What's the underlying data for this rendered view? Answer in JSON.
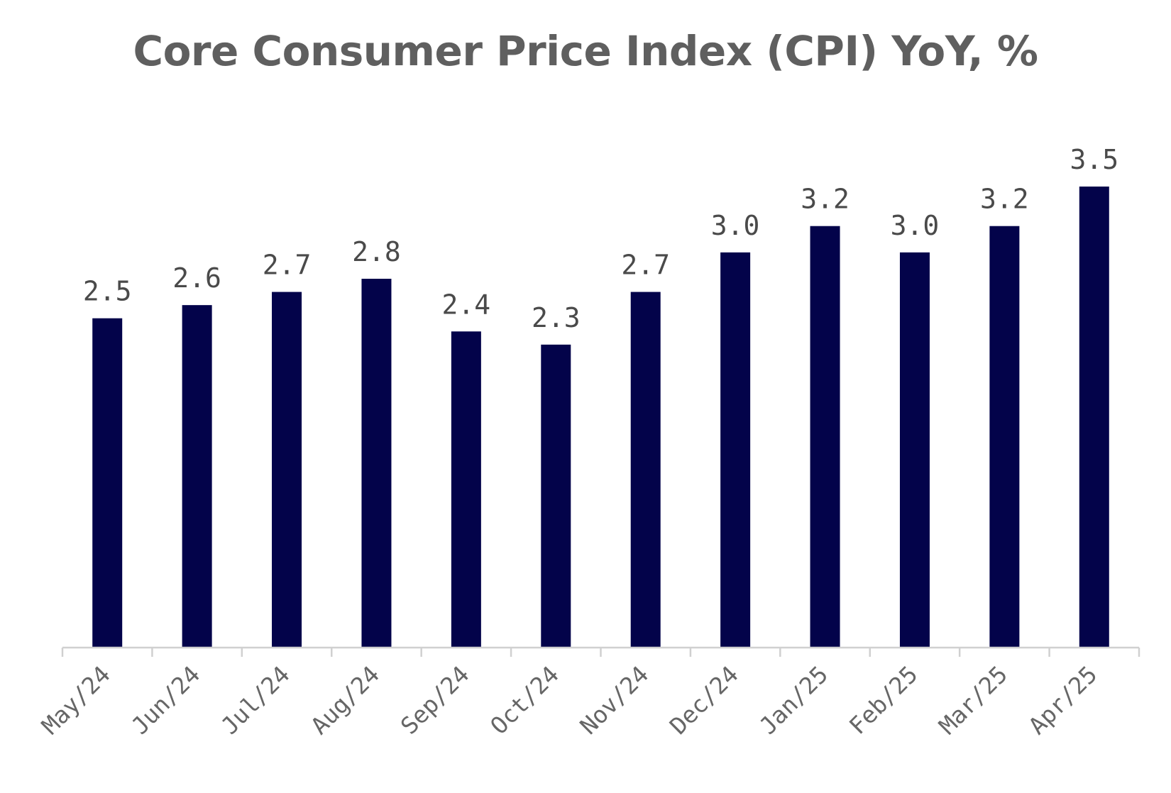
{
  "chart_data": {
    "type": "bar",
    "title": "Core Consumer Price Index (CPI) YoY, %",
    "xlabel": "",
    "ylabel": "",
    "categories": [
      "May/24",
      "Jun/24",
      "Jul/24",
      "Aug/24",
      "Sep/24",
      "Oct/24",
      "Nov/24",
      "Dec/24",
      "Jan/25",
      "Feb/25",
      "Mar/25",
      "Apr/25"
    ],
    "values": [
      2.5,
      2.6,
      2.7,
      2.8,
      2.4,
      2.3,
      2.7,
      3.0,
      3.2,
      3.0,
      3.2,
      3.5
    ],
    "data_labels": [
      "2.5",
      "2.6",
      "2.7",
      "2.8",
      "2.4",
      "2.3",
      "2.7",
      "3.0",
      "3.2",
      "3.0",
      "3.2",
      "3.5"
    ],
    "ylim": [
      0,
      3.5
    ],
    "grid": false,
    "legend": "none",
    "colors": {
      "bar": "#03034a",
      "axis": "#d0d0d0",
      "title": "#5f5f5f",
      "data_label": "#4a4a4a",
      "tick_label": "#666666"
    }
  }
}
